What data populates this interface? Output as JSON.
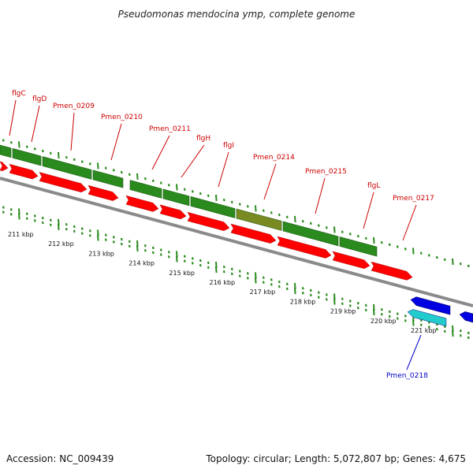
{
  "title": "Pseudomonas mendocina ymp, complete genome",
  "footer": {
    "accession": "Accession: NC_009439",
    "summary": "Topology: circular; Length: 5,072,807 bp; Genes: 4,675"
  },
  "colors": {
    "cds_green": "#2a8a1e",
    "cds_olive": "#7a8a22",
    "gene_red": "#ff0000",
    "forward_blue": "#0000e0",
    "forward_cyan": "#22cccc",
    "label_red": "#cc0000",
    "label_blue": "#0000cc",
    "tick_green": "#2a8a1e",
    "backbone": "#8a8a8a"
  },
  "scale_labels": [
    "211 kbp",
    "212 kbp",
    "213 kbp",
    "214 kbp",
    "215 kbp",
    "216 kbp",
    "217 kbp",
    "218 kbp",
    "219 kbp",
    "220 kbp",
    "221 kbp"
  ],
  "gene_labels": [
    {
      "text": "flgC",
      "strand": "reverse"
    },
    {
      "text": "flgD",
      "strand": "reverse"
    },
    {
      "text": "Pmen_0209",
      "strand": "reverse"
    },
    {
      "text": "Pmen_0210",
      "strand": "reverse"
    },
    {
      "text": "Pmen_0211",
      "strand": "reverse"
    },
    {
      "text": "flgH",
      "strand": "reverse"
    },
    {
      "text": "flgI",
      "strand": "reverse"
    },
    {
      "text": "Pmen_0214",
      "strand": "reverse"
    },
    {
      "text": "Pmen_0215",
      "strand": "reverse"
    },
    {
      "text": "flgL",
      "strand": "reverse"
    },
    {
      "text": "Pmen_0217",
      "strand": "reverse"
    },
    {
      "text": "Pmen_0218",
      "strand": "forward"
    }
  ]
}
